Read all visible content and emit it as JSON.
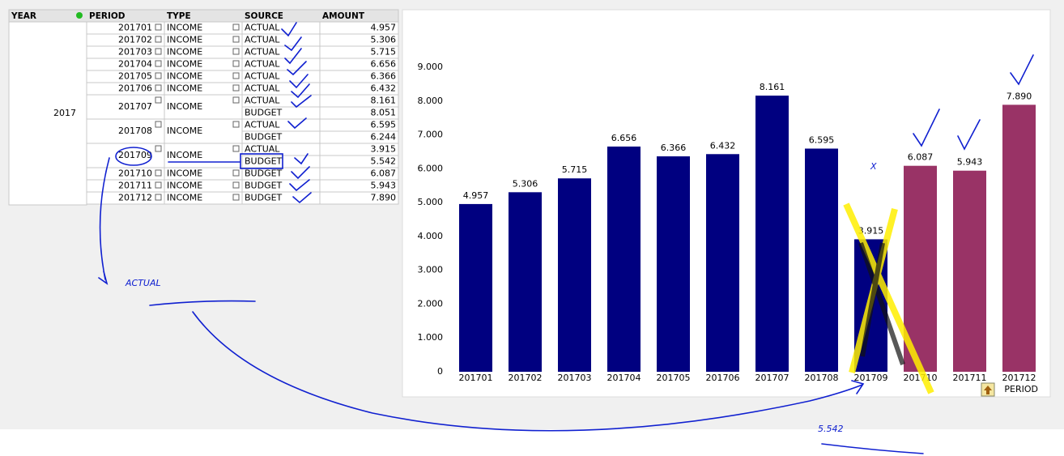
{
  "table": {
    "headers": [
      "YEAR",
      "PERIOD",
      "TYPE",
      "SOURCE",
      "AMOUNT"
    ],
    "year": "2017",
    "rows": [
      {
        "period": "201701",
        "type": "INCOME",
        "sources": [
          {
            "source": "ACTUAL",
            "amount": "4.957"
          }
        ]
      },
      {
        "period": "201702",
        "type": "INCOME",
        "sources": [
          {
            "source": "ACTUAL",
            "amount": "5.306"
          }
        ]
      },
      {
        "period": "201703",
        "type": "INCOME",
        "sources": [
          {
            "source": "ACTUAL",
            "amount": "5.715"
          }
        ]
      },
      {
        "period": "201704",
        "type": "INCOME",
        "sources": [
          {
            "source": "ACTUAL",
            "amount": "6.656"
          }
        ]
      },
      {
        "period": "201705",
        "type": "INCOME",
        "sources": [
          {
            "source": "ACTUAL",
            "amount": "6.366"
          }
        ]
      },
      {
        "period": "201706",
        "type": "INCOME",
        "sources": [
          {
            "source": "ACTUAL",
            "amount": "6.432"
          }
        ]
      },
      {
        "period": "201707",
        "type": "INCOME",
        "sources": [
          {
            "source": "ACTUAL",
            "amount": "8.161"
          },
          {
            "source": "BUDGET",
            "amount": "8.051"
          }
        ]
      },
      {
        "period": "201708",
        "type": "INCOME",
        "sources": [
          {
            "source": "ACTUAL",
            "amount": "6.595"
          },
          {
            "source": "BUDGET",
            "amount": "6.244"
          }
        ]
      },
      {
        "period": "201709",
        "type": "INCOME",
        "sources": [
          {
            "source": "ACTUAL",
            "amount": "3.915"
          },
          {
            "source": "BUDGET",
            "amount": "5.542"
          }
        ]
      },
      {
        "period": "201710",
        "type": "INCOME",
        "sources": [
          {
            "source": "BUDGET",
            "amount": "6.087"
          }
        ]
      },
      {
        "period": "201711",
        "type": "INCOME",
        "sources": [
          {
            "source": "BUDGET",
            "amount": "5.943"
          }
        ]
      },
      {
        "period": "201712",
        "type": "INCOME",
        "sources": [
          {
            "source": "BUDGET",
            "amount": "7.890"
          }
        ]
      }
    ]
  },
  "chart_data": {
    "type": "bar",
    "x_label": "PERIOD",
    "categories": [
      "201701",
      "201702",
      "201703",
      "201704",
      "201705",
      "201706",
      "201707",
      "201708",
      "201709",
      "201710",
      "201711",
      "201712"
    ],
    "values": [
      4957,
      5306,
      5715,
      6656,
      6366,
      6432,
      8161,
      6595,
      3915,
      6087,
      5943,
      7890
    ],
    "value_labels": [
      "4.957",
      "5.306",
      "5.715",
      "6.656",
      "6.366",
      "6.432",
      "8.161",
      "6.595",
      "3.915",
      "6.087",
      "5.943",
      "7.890"
    ],
    "colors": [
      "#000080",
      "#000080",
      "#000080",
      "#000080",
      "#000080",
      "#000080",
      "#000080",
      "#000080",
      "#000080",
      "#993366",
      "#993366",
      "#993366"
    ],
    "ylim": [
      0,
      9000
    ],
    "yticks": [
      0,
      {
        "value": 1000,
        "label": "1.000"
      },
      {
        "value": 2000,
        "label": "2.000"
      },
      {
        "value": 3000,
        "label": "3.000"
      },
      {
        "value": 4000,
        "label": "4.000"
      },
      {
        "value": 5000,
        "label": "5.000"
      },
      {
        "value": 6000,
        "label": "6.000"
      },
      {
        "value": 7000,
        "label": "7.000"
      },
      {
        "value": 8000,
        "label": "8.000"
      },
      {
        "value": 9000,
        "label": "9.000"
      }
    ],
    "grid": false
  },
  "annotations": [
    "ACTUAL",
    "5.542",
    "X"
  ]
}
